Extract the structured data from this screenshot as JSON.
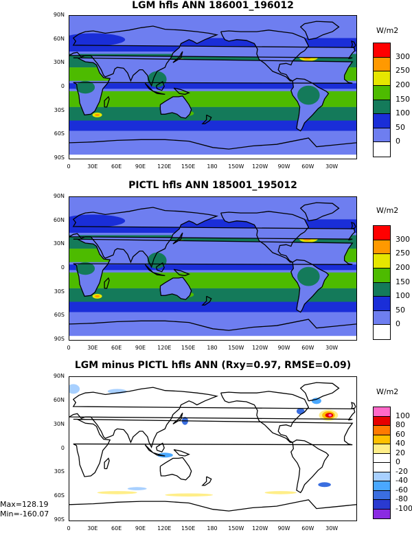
{
  "panels": [
    {
      "title": "LGM hfls ANN 186001_196012",
      "units": "W/m2",
      "levels": [
        "300",
        "250",
        "200",
        "150",
        "100",
        "50",
        "0"
      ],
      "colors": [
        "#ff0000",
        "#ff9900",
        "#e6e600",
        "#4dbb00",
        "#147a5a",
        "#1a2ed8",
        "#6e7ef0",
        "#ffffff"
      ],
      "kind": "abs"
    },
    {
      "title": "PICTL hfls ANN 185001_195012",
      "units": "W/m2",
      "levels": [
        "300",
        "250",
        "200",
        "150",
        "100",
        "50",
        "0"
      ],
      "colors": [
        "#ff0000",
        "#ff9900",
        "#e6e600",
        "#4dbb00",
        "#147a5a",
        "#1a2ed8",
        "#6e7ef0",
        "#ffffff"
      ],
      "kind": "abs"
    },
    {
      "title": "LGM minus PICTL hfls ANN (Rxy=0.97, RMSE=0.09)",
      "units": "W/m2",
      "levels": [
        "100",
        "80",
        "60",
        "40",
        "20",
        "0",
        "-20",
        "-40",
        "-60",
        "-80",
        "-100"
      ],
      "colors": [
        "#ff69c8",
        "#e60000",
        "#ff7a00",
        "#ffc000",
        "#ffee88",
        "#ffffff",
        "#ffffff",
        "#a8d0ff",
        "#4aa8ff",
        "#3a6ee0",
        "#2a3ad0",
        "#8a2be2"
      ],
      "kind": "diff",
      "max_label": "Max=128.19",
      "min_label": "Min=-160.07"
    }
  ],
  "lat_ticks": [
    "90N",
    "60N",
    "30N",
    "0",
    "30S",
    "60S",
    "90S"
  ],
  "lon_ticks": [
    "0",
    "30E",
    "60E",
    "90E",
    "120E",
    "150E",
    "180",
    "150W",
    "120W",
    "90W",
    "60W",
    "30W"
  ]
}
